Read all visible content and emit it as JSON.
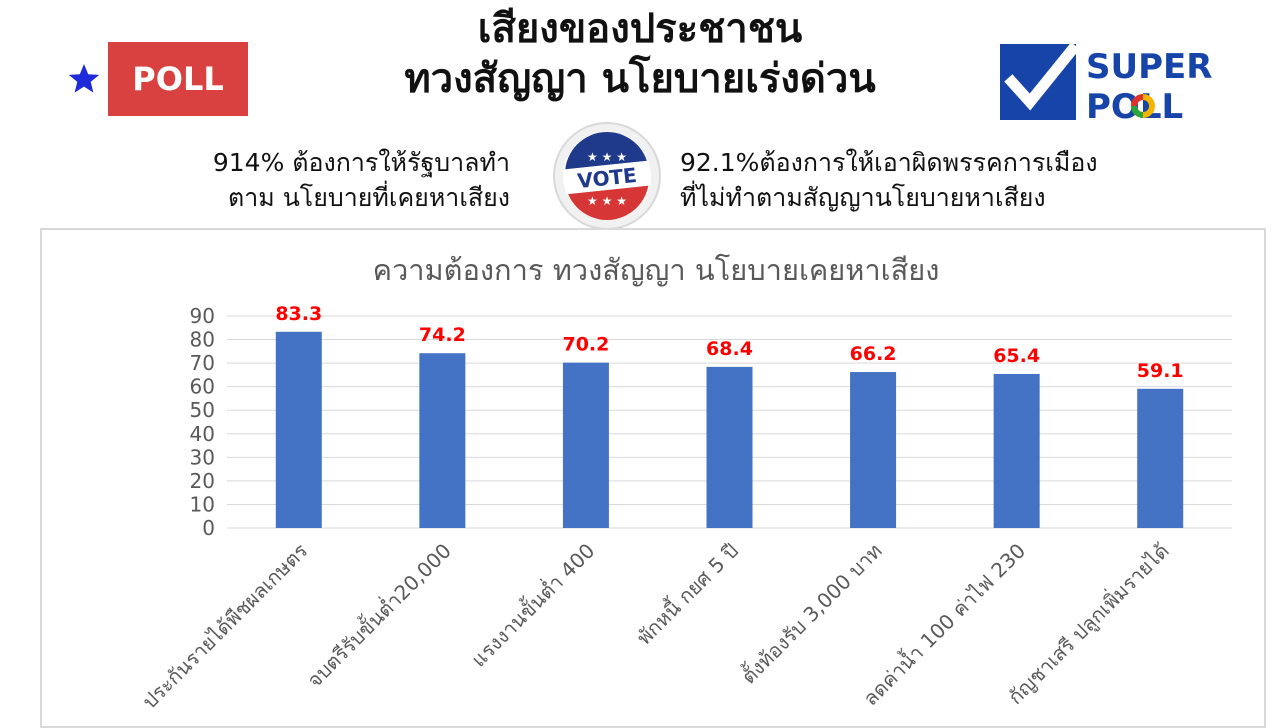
{
  "header": {
    "title_line1": "เสียงของประชาชน",
    "title_line2": "ทวงสัญญา นโยบายเร่งด่วน"
  },
  "poll_logo": {
    "text": "POLL",
    "star_color": "#1f2bd8",
    "box_color": "#d94141"
  },
  "super_poll_logo": {
    "word1": "SUPER",
    "word2": "POLL",
    "color": "#1744a8"
  },
  "vote_badge": {
    "text": "VOTE"
  },
  "stats": {
    "left_line1": "914% ต้องการให้รัฐบาลทำ",
    "left_line2": "ตาม นโยบายที่เคยหาเสียง",
    "right_line1": "92.1%ต้องการให้เอาผิดพรรคการเมือง",
    "right_line2": "ที่ไม่ทำตามสัญญานโยบายหาเสียง"
  },
  "colors": {
    "bar": "#4472c4",
    "data_label": "#ff0000",
    "axis_text": "#595959",
    "grid": "#d9d9d9"
  },
  "chart_data": {
    "type": "bar",
    "title": "ความต้องการ  ทวงสัญญา  นโยบายเคยหาเสียง",
    "categories": [
      "ประกันรายได้พืชผลเกษตร",
      "จบตรีรับขั้นต่ำ20,000",
      "แรงงานขั้นต่ำ 400",
      "พักหนี้ กยศ 5 ปี",
      "ตั้งท้องรับ 3,000 บาท",
      "ลดค่าน้ำ 100 ค่าไฟ 230",
      "กัญชาเสรี ปลูกเพิ่มรายได้"
    ],
    "values": [
      83.3,
      74.2,
      70.2,
      68.4,
      66.2,
      65.4,
      59.1
    ],
    "value_labels": [
      "83.3",
      "74.2",
      "70.2",
      "68.4",
      "66.2",
      "65.4",
      "59.1"
    ],
    "yticks": [
      "0",
      "10",
      "20",
      "30",
      "40",
      "50",
      "60",
      "70",
      "80",
      "90"
    ],
    "ylim": [
      0,
      90
    ],
    "grid": true,
    "legend": "none"
  }
}
